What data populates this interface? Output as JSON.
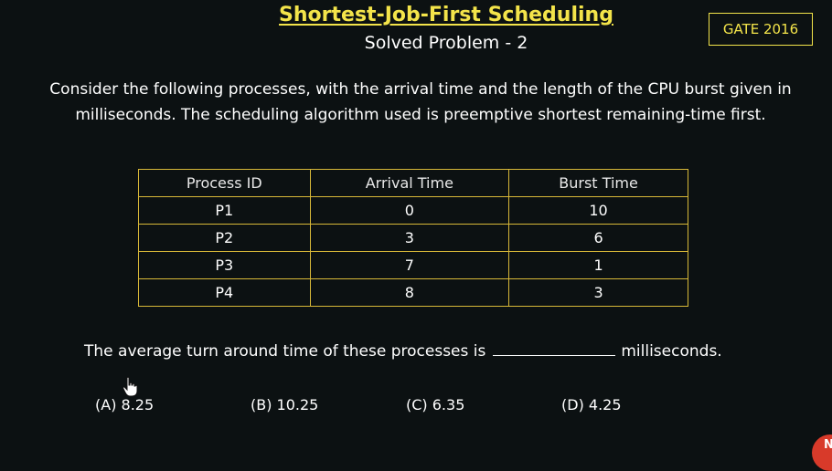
{
  "header": {
    "title": "Shortest-Job-First Scheduling",
    "subtitle": "Solved Problem - 2",
    "badge": "GATE 2016"
  },
  "question": {
    "text": "Consider the following processes, with the arrival time and the length of the CPU burst given in milliseconds. The scheduling algorithm used is preemptive shortest remaining-time first."
  },
  "table": {
    "headers": [
      "Process ID",
      "Arrival Time",
      "Burst Time"
    ],
    "rows": [
      [
        "P1",
        "0",
        "10"
      ],
      [
        "P2",
        "3",
        "6"
      ],
      [
        "P3",
        "7",
        "1"
      ],
      [
        "P4",
        "8",
        "3"
      ]
    ]
  },
  "prompt": {
    "before_blank": "The average turn around time of these processes is",
    "after_blank": "milliseconds."
  },
  "options": [
    {
      "label": "(A) 8.25"
    },
    {
      "label": "(B) 10.25"
    },
    {
      "label": "(C) 6.35"
    },
    {
      "label": "(D) 4.25"
    }
  ],
  "corner_logo": {
    "letter": "N",
    "color": "#d83a2a"
  },
  "colors": {
    "accent": "#f3e44a",
    "table_border": "#d8b838",
    "background": "#0c1112"
  }
}
